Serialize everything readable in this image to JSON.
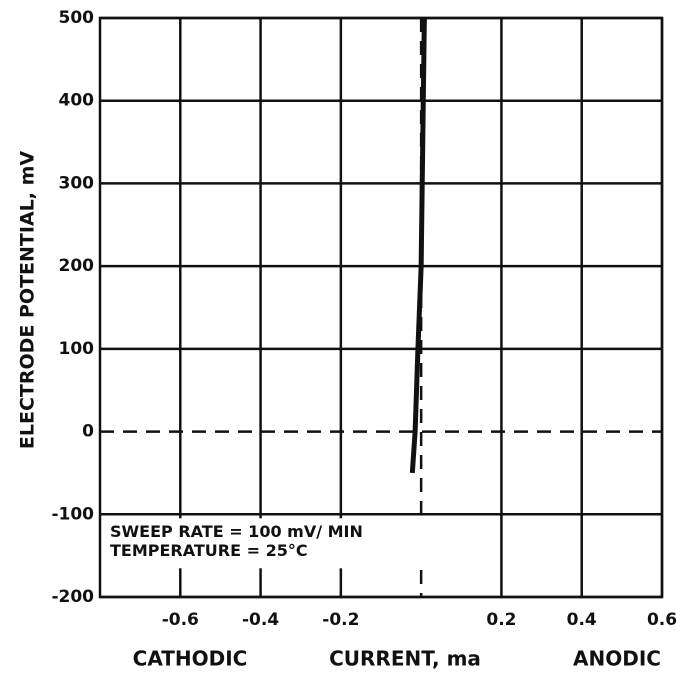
{
  "chart_data": {
    "type": "line",
    "y_label": "ELECTRODE POTENTIAL, mV",
    "x_labels": [
      "CATHODIC",
      "CURRENT, ma",
      "ANODIC"
    ],
    "annotations": [
      "SWEEP RATE = 100 mV/ MIN",
      "TEMPERATURE = 25°C"
    ],
    "xlim": [
      -0.8,
      0.6
    ],
    "xticks": [
      -0.6,
      -0.4,
      -0.2,
      0.2,
      0.4,
      0.6
    ],
    "ylim": [
      -200,
      500
    ],
    "yticks": [
      500,
      400,
      300,
      200,
      100,
      0,
      -100,
      -200
    ],
    "grid": true,
    "zero_lines_dashed": true,
    "series": [
      {
        "name": null,
        "color": "#111111",
        "x": [
          -0.022,
          -0.015,
          -0.008,
          0.0,
          0.008
        ],
        "values": [
          -50,
          0,
          100,
          200,
          500
        ]
      }
    ]
  }
}
